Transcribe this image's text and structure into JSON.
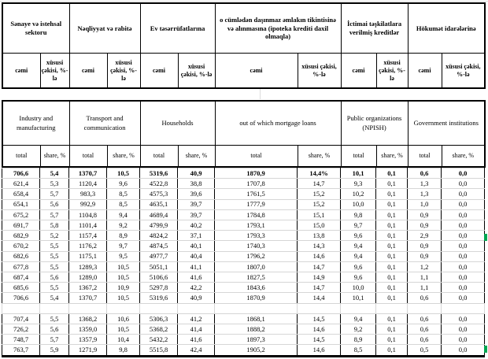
{
  "az": {
    "groups": [
      "Sənaye və istehsal sektoru",
      "Nəqliyyat və rabitə",
      "Ev təsərrüfatlarına",
      "o cümlədən daşınmaz əmlakın tikintisinə və alınmasına (ipoteka krediti daxil olmaqla)",
      "İctimai təşkilatlara verilmiş kreditlər",
      "Hökumət idarələrinə"
    ],
    "total_label": "cəmi",
    "share_label": "xüsusi çəkisi, %-lə"
  },
  "en": {
    "groups": [
      "Industry and manufacturing",
      "Transport and communication",
      "Households",
      "out of which mortgage loans",
      "Public organizations (NPISH)",
      "Government institutions"
    ],
    "total_label": "total",
    "share_label": "share, %"
  },
  "rows": [
    {
      "style": "bold",
      "cells": [
        "706,6",
        "5,4",
        "1370,7",
        "10,5",
        "5319,6",
        "40,9",
        "1870,9",
        "14,4%",
        "10,1",
        "0,1",
        "0,6",
        "0,0"
      ]
    },
    {
      "cells": [
        "621,4",
        "5,3",
        "1120,4",
        "9,6",
        "4522,8",
        "38,8",
        "1707,8",
        "14,7",
        "9,3",
        "0,1",
        "1,3",
        "0,0"
      ]
    },
    {
      "cells": [
        "658,4",
        "5,7",
        "983,3",
        "8,5",
        "4575,3",
        "39,6",
        "1761,5",
        "15,2",
        "10,2",
        "0,1",
        "1,3",
        "0,0"
      ]
    },
    {
      "cells": [
        "654,1",
        "5,6",
        "992,9",
        "8,5",
        "4635,1",
        "39,7",
        "1777,9",
        "15,2",
        "10,0",
        "0,1",
        "1,0",
        "0,0"
      ]
    },
    {
      "cells": [
        "675,2",
        "5,7",
        "1104,8",
        "9,4",
        "4689,4",
        "39,7",
        "1784,8",
        "15,1",
        "9,8",
        "0,1",
        "0,9",
        "0,0"
      ]
    },
    {
      "cells": [
        "691,7",
        "5,8",
        "1101,4",
        "9,2",
        "4799,9",
        "40,2",
        "1793,1",
        "15,0",
        "9,7",
        "0,1",
        "0,9",
        "0,0"
      ]
    },
    {
      "cells": [
        "682,9",
        "5,2",
        "1157,4",
        "8,9",
        "4824,2",
        "37,1",
        "1793,3",
        "13,8",
        "9,6",
        "0,1",
        "2,9",
        "0,0"
      ]
    },
    {
      "cells": [
        "670,2",
        "5,5",
        "1176,2",
        "9,7",
        "4874,5",
        "40,1",
        "1740,3",
        "14,3",
        "9,4",
        "0,1",
        "0,9",
        "0,0"
      ]
    },
    {
      "cells": [
        "682,6",
        "5,5",
        "1175,1",
        "9,5",
        "4977,7",
        "40,4",
        "1796,2",
        "14,6",
        "9,4",
        "0,1",
        "0,9",
        "0,0"
      ]
    },
    {
      "cells": [
        "677,8",
        "5,5",
        "1289,3",
        "10,5",
        "5051,1",
        "41,1",
        "1807,0",
        "14,7",
        "9,6",
        "0,1",
        "1,2",
        "0,0"
      ]
    },
    {
      "cells": [
        "687,4",
        "5,6",
        "1289,0",
        "10,5",
        "5106,6",
        "41,6",
        "1827,5",
        "14,9",
        "9,6",
        "0,1",
        "1,1",
        "0,0"
      ]
    },
    {
      "cells": [
        "685,6",
        "5,5",
        "1367,2",
        "10,9",
        "5297,8",
        "42,2",
        "1843,6",
        "14,7",
        "10,0",
        "0,1",
        "1,1",
        "0,0"
      ]
    },
    {
      "cells": [
        "706,6",
        "5,4",
        "1370,7",
        "10,5",
        "5319,6",
        "40,9",
        "1870,9",
        "14,4",
        "10,1",
        "0,1",
        "0,6",
        "0,0"
      ]
    },
    {
      "empty": true
    },
    {
      "cells": [
        "707,4",
        "5,5",
        "1368,2",
        "10,6",
        "5306,3",
        "41,2",
        "1868,1",
        "14,5",
        "9,4",
        "0,1",
        "0,6",
        "0,0"
      ]
    },
    {
      "cells": [
        "726,2",
        "5,6",
        "1359,0",
        "10,5",
        "5368,2",
        "41,4",
        "1888,2",
        "14,6",
        "9,2",
        "0,1",
        "0,6",
        "0,0"
      ]
    },
    {
      "cells": [
        "748,7",
        "5,7",
        "1357,9",
        "10,4",
        "5432,2",
        "41,6",
        "1897,3",
        "14,5",
        "8,9",
        "0,1",
        "0,6",
        "0,0"
      ]
    },
    {
      "cells": [
        "763,7",
        "5,9",
        "1271,9",
        "9,8",
        "5515,8",
        "42,4",
        "1905,2",
        "14,6",
        "8,5",
        "0,1",
        "0,5",
        "0,0"
      ]
    }
  ],
  "colors": {
    "border": "#000000",
    "gridline": "#d6d6d6",
    "marker_green": "#00a651",
    "background": "#ffffff",
    "text": "#000000"
  }
}
